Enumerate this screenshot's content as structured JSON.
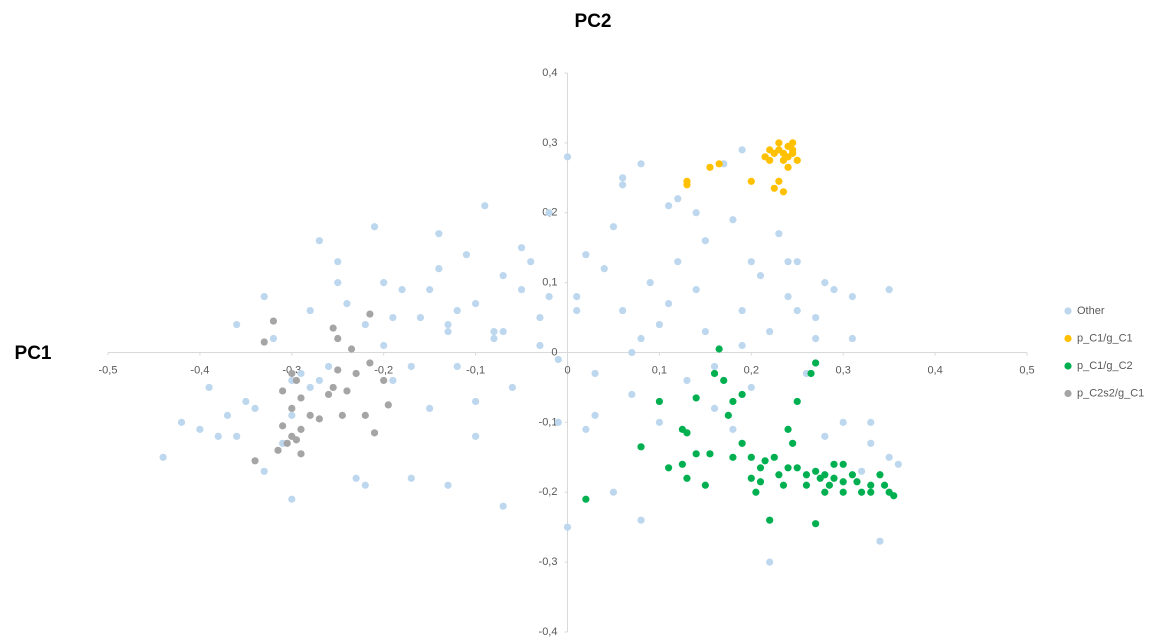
{
  "chart_data": {
    "type": "scatter",
    "x_label": "PC1",
    "y_label": "PC2",
    "xlim": [
      -0.5,
      0.5
    ],
    "ylim": [
      -0.4,
      0.4
    ],
    "xticks": [
      {
        "value": -0.5,
        "label": "-0,5"
      },
      {
        "value": -0.4,
        "label": "-0,4"
      },
      {
        "value": -0.3,
        "label": "-0,3"
      },
      {
        "value": -0.2,
        "label": "-0,2"
      },
      {
        "value": -0.1,
        "label": "-0,1"
      },
      0,
      {
        "value": 0.1,
        "label": "0,1"
      },
      {
        "value": 0.2,
        "label": "0,2"
      },
      {
        "value": 0.3,
        "label": "0,3"
      },
      {
        "value": 0.4,
        "label": "0,4"
      },
      {
        "value": 0.5,
        "label": "0,5"
      }
    ],
    "yticks": [
      {
        "value": -0.4,
        "label": "-0,4"
      },
      {
        "value": -0.3,
        "label": "-0,3"
      },
      {
        "value": -0.2,
        "label": "-0,2"
      },
      {
        "value": -0.1,
        "label": "-0,1"
      },
      0,
      {
        "value": 0.1,
        "label": "0,1"
      },
      {
        "value": 0.2,
        "label": "0,2"
      },
      {
        "value": 0.3,
        "label": "0,3"
      },
      {
        "value": 0.4,
        "label": "0,4"
      }
    ],
    "legend": "right",
    "series": [
      {
        "name": "Other",
        "color": "#bdd7ee",
        "x": [
          -0.44,
          -0.4,
          -0.39,
          -0.37,
          -0.36,
          -0.34,
          -0.33,
          -0.32,
          -0.31,
          -0.3,
          -0.29,
          -0.28,
          -0.27,
          -0.26,
          -0.25,
          -0.24,
          -0.23,
          -0.22,
          -0.21,
          -0.2,
          -0.19,
          -0.18,
          -0.17,
          -0.16,
          -0.15,
          -0.14,
          -0.13,
          -0.12,
          -0.11,
          -0.1,
          -0.09,
          -0.08,
          -0.07,
          -0.06,
          -0.05,
          -0.04,
          -0.03,
          -0.02,
          -0.01,
          0,
          0.01,
          0.02,
          0.03,
          0.04,
          0.05,
          0.06,
          0.07,
          0.08,
          0.09,
          0.1,
          0.11,
          0.12,
          0.13,
          0.14,
          0.15,
          0.16,
          0.17,
          0.18,
          0.19,
          0.2,
          0.21,
          0.22,
          0.23,
          0.24,
          0.25,
          0.26,
          0.27,
          0.28,
          0.29,
          0.3,
          0.31,
          0.32,
          0.33,
          0.34,
          0.35,
          0.36,
          -0.38,
          -0.35,
          -0.33,
          -0.3,
          -0.27,
          -0.25,
          -0.22,
          -0.19,
          -0.17,
          -0.15,
          -0.12,
          -0.1,
          -0.08,
          -0.05,
          -0.03,
          -0.01,
          0.01,
          0.03,
          0.06,
          0.08,
          0.1,
          0.12,
          0.15,
          0.18,
          0.2,
          0.22,
          0.25,
          0.28,
          0.31,
          0.33,
          -0.28,
          -0.2,
          -0.13,
          -0.07,
          -0.02,
          0.02,
          0.07,
          0.11,
          0.16,
          0.19,
          0.24,
          0.27,
          -0.13,
          -0.07,
          0.0,
          0.05,
          -0.1,
          -0.14,
          0.08,
          0.14,
          -0.36,
          -0.42,
          -0.3,
          0.19,
          0.35,
          0.06
        ],
        "y": [
          -0.15,
          -0.11,
          -0.05,
          -0.09,
          0.04,
          -0.08,
          0.08,
          0.02,
          -0.13,
          -0.21,
          -0.03,
          0.06,
          0.16,
          -0.02,
          0.1,
          0.07,
          -0.18,
          0.04,
          0.18,
          0.01,
          -0.04,
          0.09,
          -0.18,
          0.05,
          -0.08,
          0.12,
          0.03,
          -0.02,
          0.14,
          0.07,
          0.21,
          0.02,
          0.11,
          -0.05,
          0.09,
          0.13,
          0.05,
          0.2,
          -0.01,
          0.28,
          0.08,
          0.14,
          -0.03,
          0.12,
          0.18,
          0.06,
          -0.06,
          0.27,
          0.1,
          0.04,
          0.21,
          0.13,
          -0.04,
          0.09,
          0.16,
          -0.08,
          0.27,
          0.19,
          0.06,
          -0.05,
          0.11,
          0.03,
          0.17,
          0.08,
          0.13,
          -0.03,
          0.05,
          -0.12,
          0.09,
          -0.1,
          0.08,
          -0.17,
          -0.13,
          -0.27,
          -0.15,
          -0.16,
          -0.12,
          -0.07,
          -0.17,
          -0.09,
          -0.04,
          0.13,
          -0.19,
          0.05,
          -0.02,
          0.09,
          0.06,
          -0.07,
          0.03,
          0.15,
          0.01,
          -0.1,
          0.06,
          -0.09,
          0.24,
          0.02,
          -0.1,
          0.22,
          0.03,
          -0.11,
          0.13,
          -0.3,
          0.06,
          0.1,
          0.02,
          -0.1,
          -0.05,
          0.1,
          0.04,
          0.03,
          0.08,
          -0.11,
          0.0,
          0.07,
          -0.02,
          0.01,
          0.13,
          0.02,
          -0.19,
          -0.22,
          -0.25,
          -0.2,
          -0.12,
          0.17,
          -0.24,
          0.2,
          -0.12,
          -0.1,
          -0.04,
          0.29,
          0.09,
          0.25
        ]
      },
      {
        "name": "p_C1/g_C1",
        "color": "#ffc000",
        "x": [
          0.13,
          0.13,
          0.155,
          0.165,
          0.2,
          0.215,
          0.22,
          0.225,
          0.23,
          0.235,
          0.22,
          0.225,
          0.23,
          0.235,
          0.24,
          0.245,
          0.235,
          0.24,
          0.245,
          0.24,
          0.23,
          0.245,
          0.25
        ],
        "y": [
          0.24,
          0.245,
          0.265,
          0.27,
          0.245,
          0.28,
          0.275,
          0.235,
          0.245,
          0.23,
          0.29,
          0.285,
          0.29,
          0.285,
          0.295,
          0.3,
          0.275,
          0.28,
          0.285,
          0.265,
          0.3,
          0.29,
          0.275
        ]
      },
      {
        "name": "p_C1/g_C2",
        "color": "#00b050",
        "x": [
          0.02,
          0.08,
          0.1,
          0.11,
          0.125,
          0.13,
          0.125,
          0.13,
          0.14,
          0.14,
          0.15,
          0.155,
          0.16,
          0.17,
          0.165,
          0.175,
          0.18,
          0.19,
          0.19,
          0.2,
          0.18,
          0.2,
          0.205,
          0.21,
          0.21,
          0.215,
          0.22,
          0.225,
          0.23,
          0.235,
          0.24,
          0.245,
          0.25,
          0.25,
          0.26,
          0.265,
          0.27,
          0.27,
          0.275,
          0.28,
          0.285,
          0.27,
          0.29,
          0.29,
          0.3,
          0.3,
          0.31,
          0.315,
          0.32,
          0.33,
          0.34,
          0.345,
          0.35,
          0.355,
          0.33,
          0.28,
          0.3,
          0.24,
          0.26
        ],
        "y": [
          -0.21,
          -0.135,
          -0.07,
          -0.165,
          -0.11,
          -0.115,
          -0.16,
          -0.18,
          -0.145,
          -0.065,
          -0.19,
          -0.145,
          -0.03,
          -0.04,
          0.005,
          -0.09,
          -0.07,
          -0.06,
          -0.13,
          -0.15,
          -0.15,
          -0.18,
          -0.2,
          -0.185,
          -0.165,
          -0.155,
          -0.24,
          -0.15,
          -0.175,
          -0.19,
          -0.11,
          -0.13,
          -0.07,
          -0.165,
          -0.19,
          -0.03,
          -0.015,
          -0.17,
          -0.18,
          -0.2,
          -0.19,
          -0.245,
          -0.16,
          -0.18,
          -0.185,
          -0.2,
          -0.175,
          -0.185,
          -0.2,
          -0.19,
          -0.175,
          -0.19,
          -0.2,
          -0.205,
          -0.2,
          -0.175,
          -0.16,
          -0.165,
          -0.175
        ]
      },
      {
        "name": "p_C2s2/g_C1",
        "color": "#a5a5a5",
        "x": [
          -0.33,
          -0.32,
          -0.34,
          -0.315,
          -0.31,
          -0.305,
          -0.3,
          -0.295,
          -0.29,
          -0.3,
          -0.29,
          -0.31,
          -0.295,
          -0.3,
          -0.28,
          -0.27,
          -0.26,
          -0.255,
          -0.25,
          -0.24,
          -0.23,
          -0.22,
          -0.245,
          -0.235,
          -0.255,
          -0.25,
          -0.215,
          -0.2,
          -0.195,
          -0.21,
          -0.215,
          -0.29
        ],
        "y": [
          0.015,
          0.045,
          -0.155,
          -0.14,
          -0.105,
          -0.13,
          -0.12,
          -0.125,
          -0.11,
          -0.08,
          -0.065,
          -0.055,
          -0.04,
          -0.03,
          -0.09,
          -0.095,
          -0.06,
          -0.05,
          -0.025,
          -0.055,
          -0.03,
          -0.09,
          -0.09,
          0.005,
          0.035,
          0.02,
          -0.015,
          -0.04,
          -0.075,
          -0.115,
          0.055,
          -0.145
        ]
      }
    ]
  }
}
